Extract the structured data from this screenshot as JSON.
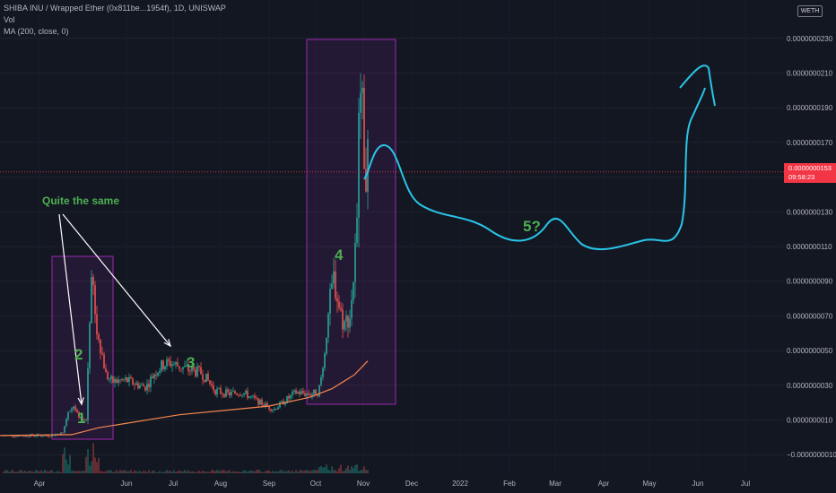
{
  "legend": {
    "symbol": "SHIBA INU / Wrapped Ether (0x811be...1954f), 1D, UNISWAP",
    "volume": "Vol",
    "ma": "MA (200, close, 0)"
  },
  "currency": "WETH",
  "last_price": {
    "value": "0.0000000153",
    "countdown": "09:58:23"
  },
  "chart_data": {
    "type": "candlestick",
    "y_axis_ticks": [
      "0.0000000230",
      "0.0000000210",
      "0.0000000190",
      "0.0000000170",
      "0.0000000150",
      "0.0000000130",
      "0.0000000110",
      "0.0000000090",
      "0.0000000070",
      "0.0000000050",
      "0.0000000030",
      "0.0000000010",
      "−0.0000000010"
    ],
    "y_axis_values": [
      2.3e-08,
      2.1e-08,
      1.9e-08,
      1.7e-08,
      1.5e-08,
      1.3e-08,
      1.1e-08,
      9e-09,
      7e-09,
      5e-09,
      3e-09,
      1e-09,
      -1e-09
    ],
    "x_axis_labels": [
      "Apr",
      "Jun",
      "Jul",
      "Aug",
      "Sep",
      "Oct",
      "Nov",
      "Dec",
      "2022",
      "Feb",
      "Mar",
      "Apr",
      "May",
      "Jun",
      "Jul"
    ],
    "ylim": [
      -1.1e-09,
      2.35e-08
    ],
    "annotations": [
      {
        "text": "Quite the same",
        "kind": "label"
      },
      {
        "text": "1",
        "kind": "wave"
      },
      {
        "text": "2",
        "kind": "wave"
      },
      {
        "text": "3",
        "kind": "wave"
      },
      {
        "text": "4",
        "kind": "wave"
      },
      {
        "text": "5?",
        "kind": "wave"
      }
    ],
    "colors": {
      "up": "#26a69a",
      "down": "#ef5350",
      "ma": "#f7874e",
      "projection": "#29c5e8",
      "box": "#9c27b0",
      "label": "#4caf50"
    }
  }
}
